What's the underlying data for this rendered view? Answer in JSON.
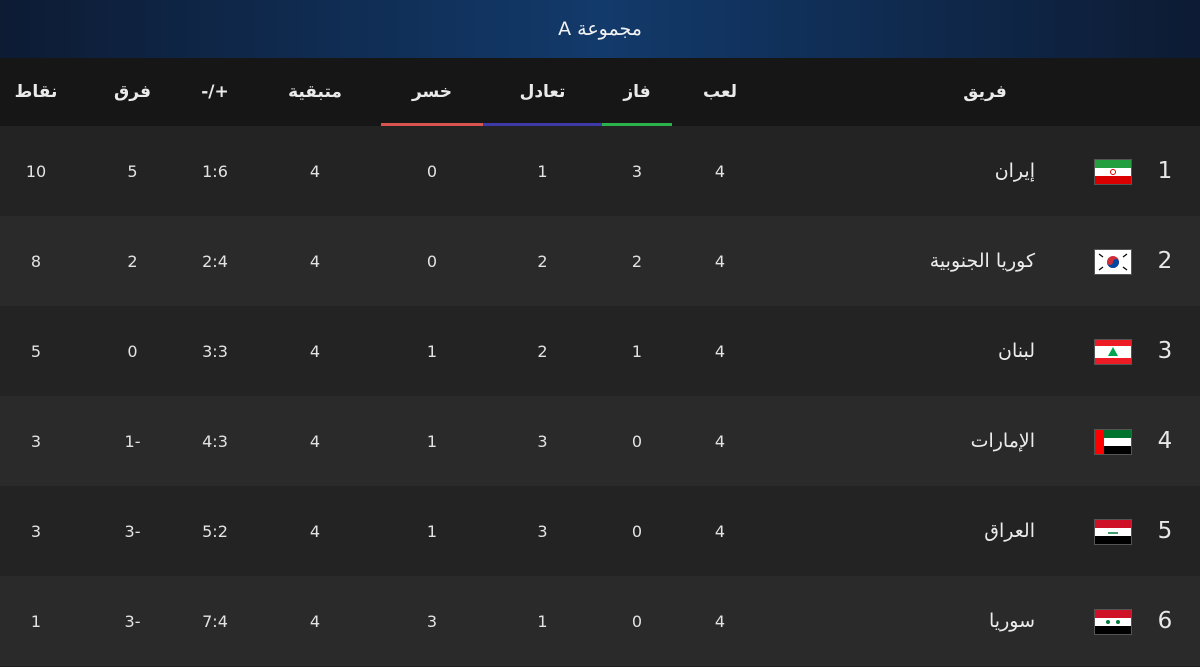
{
  "group_title": "مجموعة A",
  "headers": {
    "team": "فريق",
    "played": "لعب",
    "won": "فاز",
    "drawn": "تعادل",
    "lost": "خسر",
    "remaining": "متبقية",
    "goals": "+/-",
    "diff": "فرق",
    "points": "نقاط"
  },
  "colors": {
    "won_underline": "#2bb24c",
    "drawn_underline": "#3d3aa8",
    "lost_underline": "#d9534f"
  },
  "rows": [
    {
      "rank": "1",
      "team": "إيران",
      "flag": "iran-flag-icon",
      "played": "4",
      "won": "3",
      "drawn": "1",
      "lost": "0",
      "remaining": "4",
      "goals": "1:6",
      "diff": "5",
      "points": "10"
    },
    {
      "rank": "2",
      "team": "كوريا الجنوبية",
      "flag": "south-korea-flag-icon",
      "played": "4",
      "won": "2",
      "drawn": "2",
      "lost": "0",
      "remaining": "4",
      "goals": "2:4",
      "diff": "2",
      "points": "8"
    },
    {
      "rank": "3",
      "team": "لبنان",
      "flag": "lebanon-flag-icon",
      "played": "4",
      "won": "1",
      "drawn": "2",
      "lost": "1",
      "remaining": "4",
      "goals": "3:3",
      "diff": "0",
      "points": "5"
    },
    {
      "rank": "4",
      "team": "الإمارات",
      "flag": "uae-flag-icon",
      "played": "4",
      "won": "0",
      "drawn": "3",
      "lost": "1",
      "remaining": "4",
      "goals": "4:3",
      "diff": "-1",
      "points": "3"
    },
    {
      "rank": "5",
      "team": "العراق",
      "flag": "iraq-flag-icon",
      "played": "4",
      "won": "0",
      "drawn": "3",
      "lost": "1",
      "remaining": "4",
      "goals": "5:2",
      "diff": "-3",
      "points": "3"
    },
    {
      "rank": "6",
      "team": "سوريا",
      "flag": "syria-flag-icon",
      "played": "4",
      "won": "0",
      "drawn": "1",
      "lost": "3",
      "remaining": "4",
      "goals": "7:4",
      "diff": "-3",
      "points": "1"
    }
  ]
}
